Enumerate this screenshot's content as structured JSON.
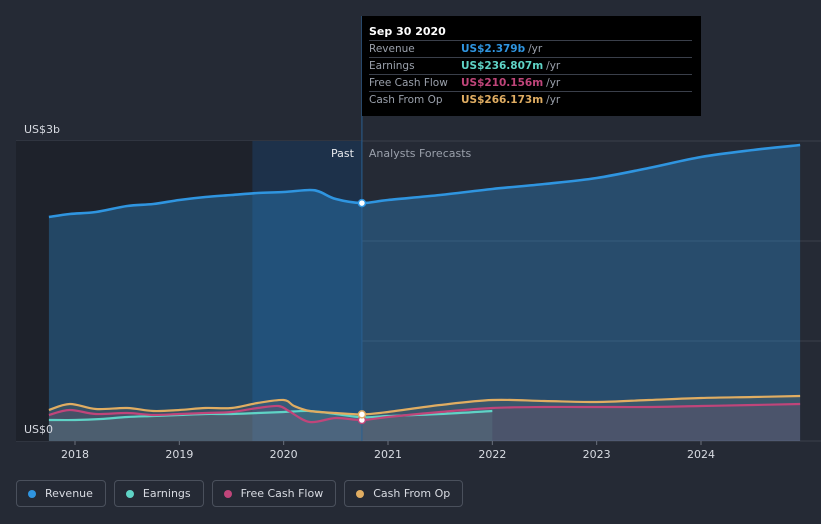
{
  "colors": {
    "revenue": "#2f95e0",
    "earnings": "#5fd3c6",
    "free_cash_flow": "#c0457a",
    "cash_from_op": "#e0ad62"
  },
  "tooltip": {
    "date": "Sep 30 2020",
    "rows": [
      {
        "label": "Revenue",
        "value": "US$2.379b",
        "unit": "/yr",
        "color": "#2f95e0"
      },
      {
        "label": "Earnings",
        "value": "US$236.807m",
        "unit": "/yr",
        "color": "#5fd3c6"
      },
      {
        "label": "Free Cash Flow",
        "value": "US$210.156m",
        "unit": "/yr",
        "color": "#c0457a"
      },
      {
        "label": "Cash From Op",
        "value": "US$266.173m",
        "unit": "/yr",
        "color": "#e0ad62"
      }
    ]
  },
  "legend": {
    "items": [
      {
        "label": "Revenue",
        "color": "#2f95e0"
      },
      {
        "label": "Earnings",
        "color": "#5fd3c6"
      },
      {
        "label": "Free Cash Flow",
        "color": "#c0457a"
      },
      {
        "label": "Cash From Op",
        "color": "#e0ad62"
      }
    ]
  },
  "chart_data": {
    "type": "area",
    "y_unit_label_top": "US$3b",
    "y_unit_label_bottom": "US$0",
    "ylim": [
      0,
      3.0
    ],
    "xlim": [
      2017.7,
      2024.95
    ],
    "x_ticks": [
      "2018",
      "2019",
      "2020",
      "2021",
      "2022",
      "2023",
      "2024"
    ],
    "x_tick_values": [
      2018,
      2019,
      2020,
      2021,
      2022,
      2023,
      2024
    ],
    "past_label": "Past",
    "forecast_label": "Analysts Forecasts",
    "divider_x": 2020.75,
    "highlight_range": [
      2019.7,
      2020.75
    ],
    "series": [
      {
        "name": "Revenue",
        "key": "revenue",
        "points": [
          [
            2017.75,
            2.24
          ],
          [
            2017.95,
            2.27
          ],
          [
            2018.2,
            2.29
          ],
          [
            2018.5,
            2.35
          ],
          [
            2018.75,
            2.37
          ],
          [
            2019.0,
            2.41
          ],
          [
            2019.25,
            2.44
          ],
          [
            2019.5,
            2.46
          ],
          [
            2019.75,
            2.48
          ],
          [
            2020.0,
            2.49
          ],
          [
            2020.25,
            2.51
          ],
          [
            2020.35,
            2.49
          ],
          [
            2020.5,
            2.42
          ],
          [
            2020.75,
            2.38
          ],
          [
            2021.0,
            2.41
          ],
          [
            2021.5,
            2.46
          ],
          [
            2022.0,
            2.52
          ],
          [
            2022.5,
            2.57
          ],
          [
            2023.0,
            2.63
          ],
          [
            2023.5,
            2.73
          ],
          [
            2024.0,
            2.84
          ],
          [
            2024.5,
            2.91
          ],
          [
            2024.95,
            2.96
          ]
        ]
      },
      {
        "name": "Earnings",
        "key": "earnings",
        "points": [
          [
            2017.75,
            0.21
          ],
          [
            2018.0,
            0.21
          ],
          [
            2018.25,
            0.22
          ],
          [
            2018.5,
            0.24
          ],
          [
            2018.75,
            0.25
          ],
          [
            2019.0,
            0.26
          ],
          [
            2019.25,
            0.27
          ],
          [
            2019.5,
            0.27
          ],
          [
            2019.75,
            0.28
          ],
          [
            2020.0,
            0.29
          ],
          [
            2020.25,
            0.3
          ],
          [
            2020.5,
            0.27
          ],
          [
            2020.75,
            0.237
          ],
          [
            2021.0,
            0.25
          ],
          [
            2021.5,
            0.27
          ],
          [
            2022.0,
            0.3
          ]
        ]
      },
      {
        "name": "Free Cash Flow",
        "key": "free_cash_flow",
        "points": [
          [
            2017.75,
            0.26
          ],
          [
            2017.95,
            0.31
          ],
          [
            2018.2,
            0.27
          ],
          [
            2018.5,
            0.28
          ],
          [
            2018.75,
            0.26
          ],
          [
            2019.0,
            0.27
          ],
          [
            2019.25,
            0.28
          ],
          [
            2019.5,
            0.29
          ],
          [
            2019.75,
            0.33
          ],
          [
            2019.95,
            0.35
          ],
          [
            2020.05,
            0.3
          ],
          [
            2020.25,
            0.19
          ],
          [
            2020.5,
            0.23
          ],
          [
            2020.75,
            0.21
          ],
          [
            2021.0,
            0.24
          ],
          [
            2021.5,
            0.29
          ],
          [
            2022.0,
            0.33
          ],
          [
            2022.5,
            0.34
          ],
          [
            2023.0,
            0.34
          ],
          [
            2023.5,
            0.34
          ],
          [
            2024.0,
            0.35
          ],
          [
            2024.5,
            0.36
          ],
          [
            2024.95,
            0.37
          ]
        ]
      },
      {
        "name": "Cash From Op",
        "key": "cash_from_op",
        "points": [
          [
            2017.75,
            0.31
          ],
          [
            2017.95,
            0.37
          ],
          [
            2018.2,
            0.32
          ],
          [
            2018.5,
            0.33
          ],
          [
            2018.75,
            0.3
          ],
          [
            2019.0,
            0.31
          ],
          [
            2019.25,
            0.33
          ],
          [
            2019.5,
            0.33
          ],
          [
            2019.75,
            0.38
          ],
          [
            2020.0,
            0.41
          ],
          [
            2020.1,
            0.35
          ],
          [
            2020.25,
            0.3
          ],
          [
            2020.5,
            0.28
          ],
          [
            2020.75,
            0.266
          ],
          [
            2021.0,
            0.29
          ],
          [
            2021.5,
            0.36
          ],
          [
            2022.0,
            0.41
          ],
          [
            2022.5,
            0.4
          ],
          [
            2023.0,
            0.39
          ],
          [
            2023.5,
            0.41
          ],
          [
            2024.0,
            0.43
          ],
          [
            2024.5,
            0.44
          ],
          [
            2024.95,
            0.45
          ]
        ]
      }
    ],
    "markers": [
      {
        "key": "revenue",
        "x": 2020.75,
        "y": 2.379
      },
      {
        "key": "earnings",
        "x": 2020.75,
        "y": 0.237
      },
      {
        "key": "free_cash_flow",
        "x": 2020.75,
        "y": 0.21
      },
      {
        "key": "cash_from_op",
        "x": 2020.75,
        "y": 0.266
      }
    ]
  }
}
